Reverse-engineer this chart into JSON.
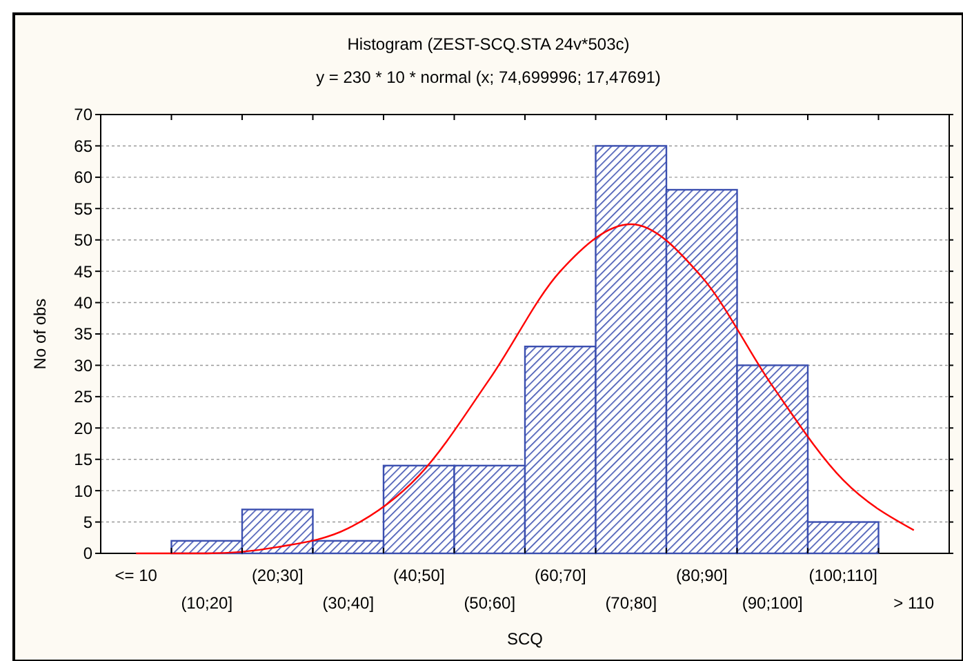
{
  "chart_data": {
    "type": "bar",
    "title": "Histogram (ZEST-SCQ.STA 24v*503c)",
    "subtitle": "y = 230 * 10 * normal (x; 74,699996; 17,47691)",
    "xlabel": "SCQ",
    "ylabel": "No of obs",
    "categories": [
      "<= 10",
      "(10;20]",
      "(20;30]",
      "(30;40]",
      "(40;50]",
      "(50;60]",
      "(60;70]",
      "(70;80]",
      "(80;90]",
      "(90;100]",
      "(100;110]",
      "> 110"
    ],
    "series": [
      {
        "color": "#3b4fb0",
        "values": [
          0,
          2,
          7,
          2,
          14,
          14,
          33,
          65,
          58,
          30,
          5,
          0
        ]
      },
      {
        "type": "line",
        "color": "#ff0000",
        "values": [
          0,
          0,
          1,
          4,
          12.4,
          27.8,
          45.0,
          52.5,
          44.1,
          26.7,
          11.7,
          3.7
        ]
      }
    ],
    "ylim": [
      0,
      70
    ],
    "yticks": [
      0,
      5,
      10,
      15,
      20,
      25,
      30,
      35,
      40,
      45,
      50,
      55,
      60,
      65,
      70
    ],
    "grid": "y"
  }
}
